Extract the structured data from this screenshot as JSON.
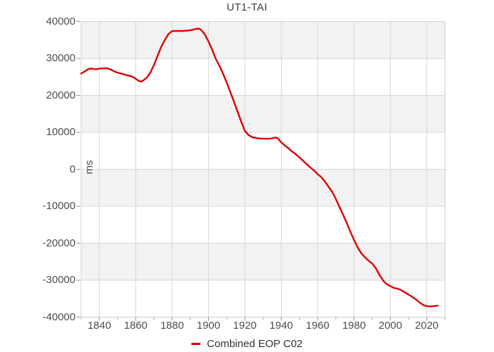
{
  "chart_data": {
    "type": "line",
    "title": "UT1-TAI",
    "xlabel": "",
    "ylabel": "ms",
    "xlim": [
      1830,
      2030
    ],
    "ylim": [
      -40000,
      40000
    ],
    "x_major_ticks": [
      1840,
      1860,
      1880,
      1900,
      1920,
      1940,
      1960,
      1980,
      2000,
      2020
    ],
    "x_minor_ticks": [
      1830,
      1850,
      1870,
      1890,
      1910,
      1930,
      1950,
      1970,
      1990,
      2010,
      2030
    ],
    "y_ticks": [
      40000,
      30000,
      20000,
      10000,
      0,
      -10000,
      -20000,
      -30000,
      -40000
    ],
    "grid": {
      "on": true,
      "band_fill": "alternating-horizontal"
    },
    "legend_position": "bottom-center",
    "colors": {
      "series_red": "#dd0000",
      "band_gray": "#f2f2f2",
      "band_white": "#ffffff",
      "gridline": "#d6d6d6",
      "plot_border": "#cfcfcf",
      "tick_mark": "#8f8f8f",
      "tick_label": "#4d4d4d",
      "title_text": "#3d3d3d"
    },
    "series": [
      {
        "name": "Combined EOP C02",
        "color": "#dd0000",
        "points": [
          [
            1830,
            25900
          ],
          [
            1832,
            26500
          ],
          [
            1834,
            27150
          ],
          [
            1836,
            27250
          ],
          [
            1838,
            27050
          ],
          [
            1840,
            27250
          ],
          [
            1842,
            27300
          ],
          [
            1844,
            27350
          ],
          [
            1846,
            27050
          ],
          [
            1848,
            26550
          ],
          [
            1850,
            26150
          ],
          [
            1852,
            25900
          ],
          [
            1854,
            25600
          ],
          [
            1856,
            25350
          ],
          [
            1858,
            25100
          ],
          [
            1860,
            24500
          ],
          [
            1861,
            24150
          ],
          [
            1862,
            23850
          ],
          [
            1863,
            23750
          ],
          [
            1864,
            24000
          ],
          [
            1866,
            24750
          ],
          [
            1868,
            26100
          ],
          [
            1870,
            28200
          ],
          [
            1872,
            30700
          ],
          [
            1874,
            33100
          ],
          [
            1876,
            35000
          ],
          [
            1878,
            36600
          ],
          [
            1880,
            37400
          ],
          [
            1882,
            37450
          ],
          [
            1884,
            37420
          ],
          [
            1886,
            37450
          ],
          [
            1888,
            37500
          ],
          [
            1890,
            37620
          ],
          [
            1892,
            37850
          ],
          [
            1894,
            38050
          ],
          [
            1895,
            38000
          ],
          [
            1896,
            37700
          ],
          [
            1898,
            36500
          ],
          [
            1900,
            34600
          ],
          [
            1902,
            32400
          ],
          [
            1904,
            29900
          ],
          [
            1906,
            28000
          ],
          [
            1908,
            25900
          ],
          [
            1910,
            23500
          ],
          [
            1912,
            20900
          ],
          [
            1914,
            18300
          ],
          [
            1916,
            15600
          ],
          [
            1918,
            12900
          ],
          [
            1920,
            10400
          ],
          [
            1922,
            9300
          ],
          [
            1924,
            8700
          ],
          [
            1926,
            8450
          ],
          [
            1928,
            8350
          ],
          [
            1930,
            8300
          ],
          [
            1932,
            8250
          ],
          [
            1934,
            8300
          ],
          [
            1936,
            8500
          ],
          [
            1937,
            8600
          ],
          [
            1938,
            8400
          ],
          [
            1940,
            7300
          ],
          [
            1942,
            6400
          ],
          [
            1944,
            5700
          ],
          [
            1946,
            4800
          ],
          [
            1948,
            4100
          ],
          [
            1950,
            3200
          ],
          [
            1952,
            2300
          ],
          [
            1954,
            1400
          ],
          [
            1956,
            500
          ],
          [
            1958,
            -300
          ],
          [
            1960,
            -1300
          ],
          [
            1962,
            -2100
          ],
          [
            1964,
            -3300
          ],
          [
            1966,
            -4700
          ],
          [
            1968,
            -6100
          ],
          [
            1970,
            -8000
          ],
          [
            1972,
            -10200
          ],
          [
            1974,
            -12300
          ],
          [
            1976,
            -14500
          ],
          [
            1978,
            -16900
          ],
          [
            1980,
            -19100
          ],
          [
            1982,
            -21100
          ],
          [
            1984,
            -22700
          ],
          [
            1986,
            -23800
          ],
          [
            1988,
            -24700
          ],
          [
            1990,
            -25500
          ],
          [
            1992,
            -26800
          ],
          [
            1994,
            -28600
          ],
          [
            1996,
            -30100
          ],
          [
            1998,
            -31100
          ],
          [
            2000,
            -31600
          ],
          [
            2002,
            -32100
          ],
          [
            2004,
            -32300
          ],
          [
            2006,
            -32700
          ],
          [
            2008,
            -33300
          ],
          [
            2010,
            -33900
          ],
          [
            2012,
            -34500
          ],
          [
            2014,
            -35200
          ],
          [
            2016,
            -36000
          ],
          [
            2018,
            -36700
          ],
          [
            2020,
            -37000
          ],
          [
            2021,
            -37100
          ],
          [
            2022,
            -37100
          ],
          [
            2024,
            -37000
          ],
          [
            2026,
            -36900
          ]
        ]
      }
    ]
  }
}
